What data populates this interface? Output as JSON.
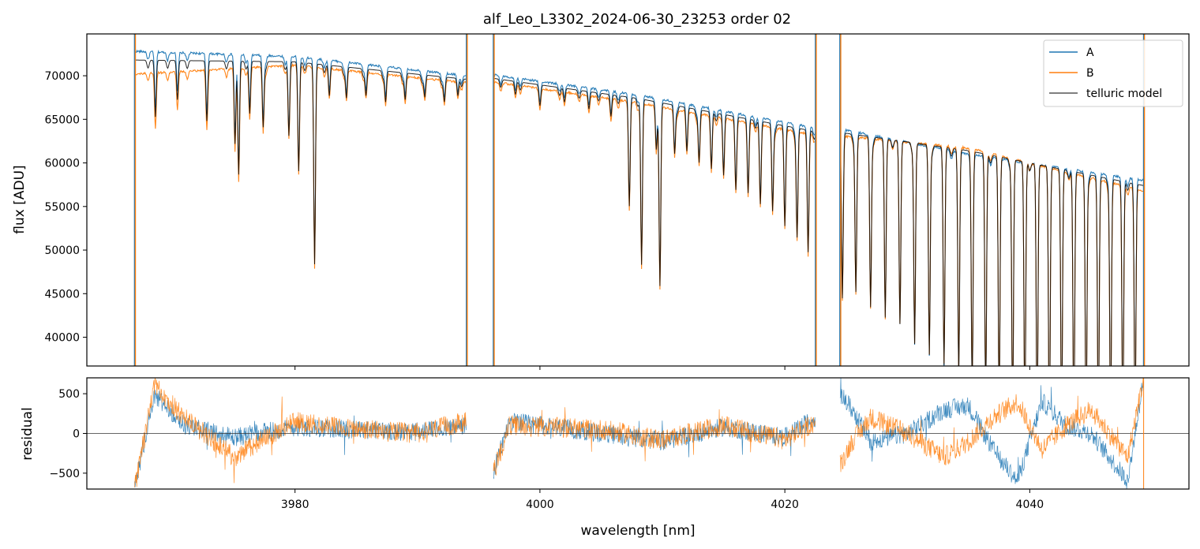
{
  "chart_data": [
    {
      "type": "line",
      "title": "alf_Leo_L3302_2024-06-30_23253  order 02",
      "xlabel": "",
      "ylabel": "flux [ADU]",
      "xlim": [
        3963,
        4053
      ],
      "ylim": [
        36700,
        74800
      ],
      "yticks": [
        40000,
        45000,
        50000,
        55000,
        60000,
        65000,
        70000
      ],
      "ytick_labels": [
        "40000",
        "45000",
        "50000",
        "55000",
        "60000",
        "65000",
        "70000"
      ],
      "xticks": [
        3980,
        4000,
        4020,
        4040
      ],
      "grid": false,
      "legend_position": "top-right",
      "segments": [
        [
          3966.9,
          3994.0
        ],
        [
          3996.2,
          4022.5
        ],
        [
          4024.5,
          4049.3
        ]
      ],
      "series": [
        {
          "name": "A",
          "color": "#1f77b4",
          "anchors": [
            [
              3967.0,
              72800
            ],
            [
              3980.0,
              72200
            ],
            [
              3994.0,
              70000
            ],
            [
              3996.2,
              70100
            ],
            [
              4008.0,
              67800
            ],
            [
              4022.5,
              64000
            ],
            [
              4024.5,
              63900
            ],
            [
              4035.0,
              61000
            ],
            [
              4049.3,
              58000
            ]
          ]
        },
        {
          "name": "B",
          "color": "#ff7f0e",
          "anchors": [
            [
              3967.0,
              70200
            ],
            [
              3980.0,
              71200
            ],
            [
              3994.0,
              69200
            ],
            [
              3996.2,
              69300
            ],
            [
              4008.0,
              66900
            ],
            [
              4022.5,
              63200
            ],
            [
              4024.5,
              63100
            ],
            [
              4035.0,
              61700
            ],
            [
              4049.3,
              56800
            ]
          ]
        },
        {
          "name": "telluric model",
          "color": "#000000",
          "anchors": [
            [
              3967.0,
              71800
            ],
            [
              3980.0,
              71600
            ],
            [
              3994.0,
              69600
            ],
            [
              3996.2,
              69700
            ],
            [
              4008.0,
              67400
            ],
            [
              4022.5,
              63600
            ],
            [
              4024.5,
              63500
            ],
            [
              4035.0,
              61400
            ],
            [
              4049.3,
              57400
            ]
          ]
        }
      ],
      "absorption_lines": [
        {
          "x": 3968.6,
          "depth": 6500
        },
        {
          "x": 3970.4,
          "depth": 4500
        },
        {
          "x": 3972.8,
          "depth": 6000
        },
        {
          "x": 3975.1,
          "depth": 9500
        },
        {
          "x": 3975.4,
          "depth": 13000
        },
        {
          "x": 3976.3,
          "depth": 6000
        },
        {
          "x": 3977.4,
          "depth": 7500
        },
        {
          "x": 3979.5,
          "depth": 8500
        },
        {
          "x": 3980.3,
          "depth": 12500
        },
        {
          "x": 3981.6,
          "depth": 23000
        },
        {
          "x": 3982.8,
          "depth": 3500
        },
        {
          "x": 3984.2,
          "depth": 3500
        },
        {
          "x": 3985.8,
          "depth": 3000
        },
        {
          "x": 3987.4,
          "depth": 3500
        },
        {
          "x": 3989.0,
          "depth": 3000
        },
        {
          "x": 3990.6,
          "depth": 2500
        },
        {
          "x": 3992.2,
          "depth": 2800
        },
        {
          "x": 3993.3,
          "depth": 2000
        },
        {
          "x": 3998.0,
          "depth": 1500
        },
        {
          "x": 4000.0,
          "depth": 1500
        },
        {
          "x": 4002.0,
          "depth": 1600
        },
        {
          "x": 4004.0,
          "depth": 2000
        },
        {
          "x": 4005.8,
          "depth": 2500
        },
        {
          "x": 4007.3,
          "depth": 12500
        },
        {
          "x": 4008.3,
          "depth": 19000
        },
        {
          "x": 4009.5,
          "depth": 5000
        },
        {
          "x": 4009.8,
          "depth": 21000
        },
        {
          "x": 4011.0,
          "depth": 5500
        },
        {
          "x": 4012.0,
          "depth": 5000
        },
        {
          "x": 4013.0,
          "depth": 6000
        },
        {
          "x": 4014.0,
          "depth": 6500
        },
        {
          "x": 4015.0,
          "depth": 7000
        },
        {
          "x": 4016.0,
          "depth": 7500
        },
        {
          "x": 4017.0,
          "depth": 8500
        },
        {
          "x": 4018.0,
          "depth": 9500
        },
        {
          "x": 4019.0,
          "depth": 10000
        },
        {
          "x": 4020.0,
          "depth": 11500
        },
        {
          "x": 4021.0,
          "depth": 12500
        },
        {
          "x": 4021.9,
          "depth": 14000
        },
        {
          "x": 4024.7,
          "depth": 19000
        },
        {
          "x": 4025.8,
          "depth": 18000
        },
        {
          "x": 4027.0,
          "depth": 19500
        },
        {
          "x": 4028.2,
          "depth": 20500
        },
        {
          "x": 4029.4,
          "depth": 21000
        },
        {
          "x": 4030.6,
          "depth": 23000
        },
        {
          "x": 4031.8,
          "depth": 24000
        },
        {
          "x": 4033.0,
          "depth": 25000
        },
        {
          "x": 4034.2,
          "depth": 26000
        },
        {
          "x": 4035.3,
          "depth": 27000
        },
        {
          "x": 4036.4,
          "depth": 28000
        },
        {
          "x": 4037.5,
          "depth": 28500
        },
        {
          "x": 4038.6,
          "depth": 29000
        },
        {
          "x": 4039.6,
          "depth": 29500
        },
        {
          "x": 4040.6,
          "depth": 30000
        },
        {
          "x": 4041.6,
          "depth": 30000
        },
        {
          "x": 4042.6,
          "depth": 29000
        },
        {
          "x": 4043.6,
          "depth": 29500
        },
        {
          "x": 4044.6,
          "depth": 29000
        },
        {
          "x": 4045.6,
          "depth": 28500
        },
        {
          "x": 4046.6,
          "depth": 28000
        },
        {
          "x": 4047.6,
          "depth": 27500
        },
        {
          "x": 4048.6,
          "depth": 27000
        }
      ],
      "spikes": [
        3966.9,
        3994.0,
        3996.2,
        4022.5,
        4024.5,
        4049.3
      ]
    },
    {
      "type": "line",
      "title": "",
      "xlabel": "wavelength [nm]",
      "ylabel": "residual",
      "xlim": [
        3963,
        4053
      ],
      "ylim": [
        -700,
        700
      ],
      "yticks": [
        -500,
        0,
        500
      ],
      "ytick_labels": [
        "−500",
        "0",
        "500"
      ],
      "xticks": [
        3980,
        4000,
        4020,
        4040
      ],
      "xtick_labels": [
        "3980",
        "4000",
        "4020",
        "4040"
      ],
      "zero_line": 0,
      "segments": [
        [
          3966.9,
          3994.0
        ],
        [
          3996.2,
          4022.5
        ],
        [
          4024.5,
          4049.3
        ]
      ],
      "series": [
        {
          "name": "A",
          "color": "#1f77b4",
          "noise": 120,
          "anchors": [
            [
              3966.9,
              -700
            ],
            [
              3968.5,
              500
            ],
            [
              3971.0,
              100
            ],
            [
              3975.0,
              -50
            ],
            [
              3980.0,
              80
            ],
            [
              3985.0,
              50
            ],
            [
              3990.0,
              20
            ],
            [
              3994.0,
              100
            ],
            [
              3996.2,
              -500
            ],
            [
              3997.5,
              150
            ],
            [
              4005.0,
              0
            ],
            [
              4010.0,
              -100
            ],
            [
              4015.0,
              80
            ],
            [
              4020.0,
              -50
            ],
            [
              4022.5,
              200
            ],
            [
              4024.5,
              500
            ],
            [
              4025.5,
              300
            ],
            [
              4027.0,
              -100
            ],
            [
              4030.0,
              0
            ],
            [
              4033.0,
              300
            ],
            [
              4035.0,
              350
            ],
            [
              4037.0,
              -200
            ],
            [
              4039.0,
              -600
            ],
            [
              4041.0,
              400
            ],
            [
              4043.0,
              100
            ],
            [
              4045.0,
              0
            ],
            [
              4048.0,
              -600
            ],
            [
              4049.3,
              700
            ]
          ]
        },
        {
          "name": "B",
          "color": "#ff7f0e",
          "noise": 130,
          "anchors": [
            [
              3966.9,
              -700
            ],
            [
              3968.5,
              600
            ],
            [
              3971.0,
              200
            ],
            [
              3975.0,
              -300
            ],
            [
              3976.0,
              -200
            ],
            [
              3980.0,
              150
            ],
            [
              3985.0,
              50
            ],
            [
              3990.0,
              0
            ],
            [
              3994.0,
              150
            ],
            [
              3996.2,
              -500
            ],
            [
              3997.5,
              100
            ],
            [
              4005.0,
              50
            ],
            [
              4010.0,
              -80
            ],
            [
              4015.0,
              100
            ],
            [
              4020.0,
              -80
            ],
            [
              4022.5,
              150
            ],
            [
              4024.5,
              -400
            ],
            [
              4025.5,
              -100
            ],
            [
              4027.0,
              200
            ],
            [
              4030.0,
              0
            ],
            [
              4033.0,
              -300
            ],
            [
              4035.0,
              -100
            ],
            [
              4037.0,
              200
            ],
            [
              4039.0,
              400
            ],
            [
              4041.0,
              -200
            ],
            [
              4043.0,
              100
            ],
            [
              4045.0,
              300
            ],
            [
              4048.0,
              -300
            ],
            [
              4049.3,
              700
            ]
          ]
        }
      ]
    }
  ],
  "legend": {
    "items": [
      {
        "label": "A",
        "color": "#1f77b4"
      },
      {
        "label": "B",
        "color": "#ff7f0e"
      },
      {
        "label": "telluric model",
        "color": "#555555"
      }
    ]
  }
}
